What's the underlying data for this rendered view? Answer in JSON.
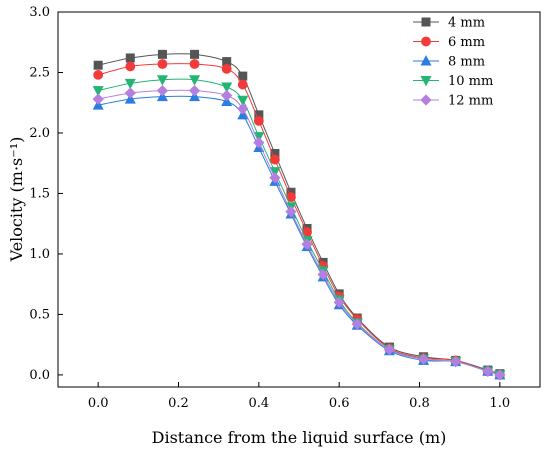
{
  "chart_data": {
    "type": "line",
    "title": "",
    "xlabel": "Distance from the liquid surface (m)",
    "ylabel": "Velocity (m·s⁻¹)",
    "xlim": [
      -0.1,
      1.1
    ],
    "ylim": [
      -0.1,
      3.0
    ],
    "grid": false,
    "legend_position": "top-right",
    "x_ticks": [
      0.0,
      0.2,
      0.4,
      0.6,
      0.8,
      1.0
    ],
    "x_tick_labels": [
      "0.0",
      "0.2",
      "0.4",
      "0.6",
      "0.8",
      "1.0"
    ],
    "y_ticks": [
      0.0,
      0.5,
      1.0,
      1.5,
      2.0,
      2.5,
      3.0
    ],
    "y_tick_labels": [
      "0.0",
      "0.5",
      "1.0",
      "1.5",
      "2.0",
      "2.5",
      "3.0"
    ],
    "x": [
      0.0,
      0.08,
      0.16,
      0.24,
      0.32,
      0.36,
      0.4,
      0.44,
      0.48,
      0.52,
      0.56,
      0.6,
      0.645,
      0.725,
      0.81,
      0.89,
      0.97,
      1.0
    ],
    "series": [
      {
        "name": "4 mm",
        "color": "#555555",
        "marker": "square",
        "values": [
          2.56,
          2.62,
          2.65,
          2.65,
          2.59,
          2.47,
          2.15,
          1.83,
          1.51,
          1.21,
          0.93,
          0.67,
          0.47,
          0.23,
          0.15,
          0.12,
          0.04,
          0.01
        ]
      },
      {
        "name": "6 mm",
        "color": "#f23a3a",
        "marker": "circle",
        "values": [
          2.48,
          2.55,
          2.57,
          2.57,
          2.53,
          2.4,
          2.1,
          1.78,
          1.47,
          1.18,
          0.9,
          0.65,
          0.46,
          0.22,
          0.14,
          0.12,
          0.03,
          0.0
        ]
      },
      {
        "name": "8 mm",
        "color": "#2a7de1",
        "marker": "triangle-up",
        "values": [
          2.23,
          2.28,
          2.3,
          2.3,
          2.26,
          2.15,
          1.88,
          1.6,
          1.33,
          1.06,
          0.81,
          0.58,
          0.41,
          0.2,
          0.12,
          0.11,
          0.03,
          0.0
        ]
      },
      {
        "name": "10 mm",
        "color": "#22b573",
        "marker": "triangle-down",
        "values": [
          2.35,
          2.41,
          2.44,
          2.44,
          2.38,
          2.27,
          1.97,
          1.68,
          1.39,
          1.11,
          0.86,
          0.62,
          0.43,
          0.21,
          0.13,
          0.11,
          0.03,
          0.0
        ]
      },
      {
        "name": "12 mm",
        "color": "#b57fe0",
        "marker": "diamond",
        "values": [
          2.28,
          2.33,
          2.35,
          2.35,
          2.31,
          2.2,
          1.92,
          1.63,
          1.35,
          1.08,
          0.83,
          0.6,
          0.42,
          0.21,
          0.13,
          0.11,
          0.03,
          0.0
        ]
      }
    ]
  }
}
